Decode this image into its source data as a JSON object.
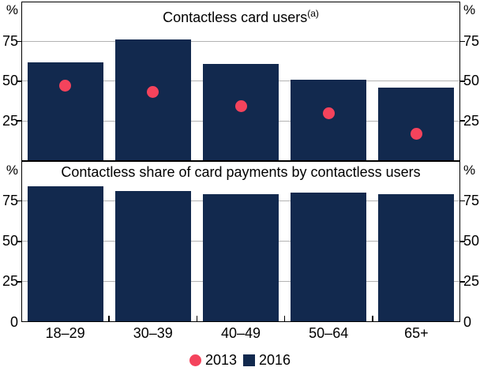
{
  "chart_data": {
    "type": "bar",
    "categories": [
      "18–29",
      "30–39",
      "40–49",
      "50–64",
      "65+"
    ],
    "unit": "%",
    "panels": [
      {
        "title": "Contactless card users",
        "title_superscript": "(a)",
        "ylim": [
          0,
          100
        ],
        "yticks": [
          75,
          50,
          25
        ],
        "grid": true,
        "series": [
          {
            "name": "2016",
            "type": "bar",
            "values": [
              62,
              76,
              61,
              51,
              46
            ]
          },
          {
            "name": "2013",
            "type": "dot",
            "values": [
              47,
              43,
              34,
              30,
              17
            ]
          }
        ]
      },
      {
        "title": "Contactless share of card payments by contactless users",
        "title_superscript": "",
        "ylim": [
          0,
          100
        ],
        "yticks": [
          75,
          50,
          25,
          0
        ],
        "grid": true,
        "series": [
          {
            "name": "2016",
            "type": "bar",
            "values": [
              84,
              81,
              79,
              80,
              79
            ]
          }
        ]
      }
    ],
    "legend": [
      {
        "label": "2013",
        "marker": "circle",
        "color": "#F4435C"
      },
      {
        "label": "2016",
        "marker": "square",
        "color": "#12294E"
      }
    ],
    "colors": {
      "bar": "#12294E",
      "dot": "#F4435C",
      "gridline": "#b3b3b3",
      "frame": "#000000",
      "text": "#000000"
    },
    "legend_position": "bottom-center"
  }
}
